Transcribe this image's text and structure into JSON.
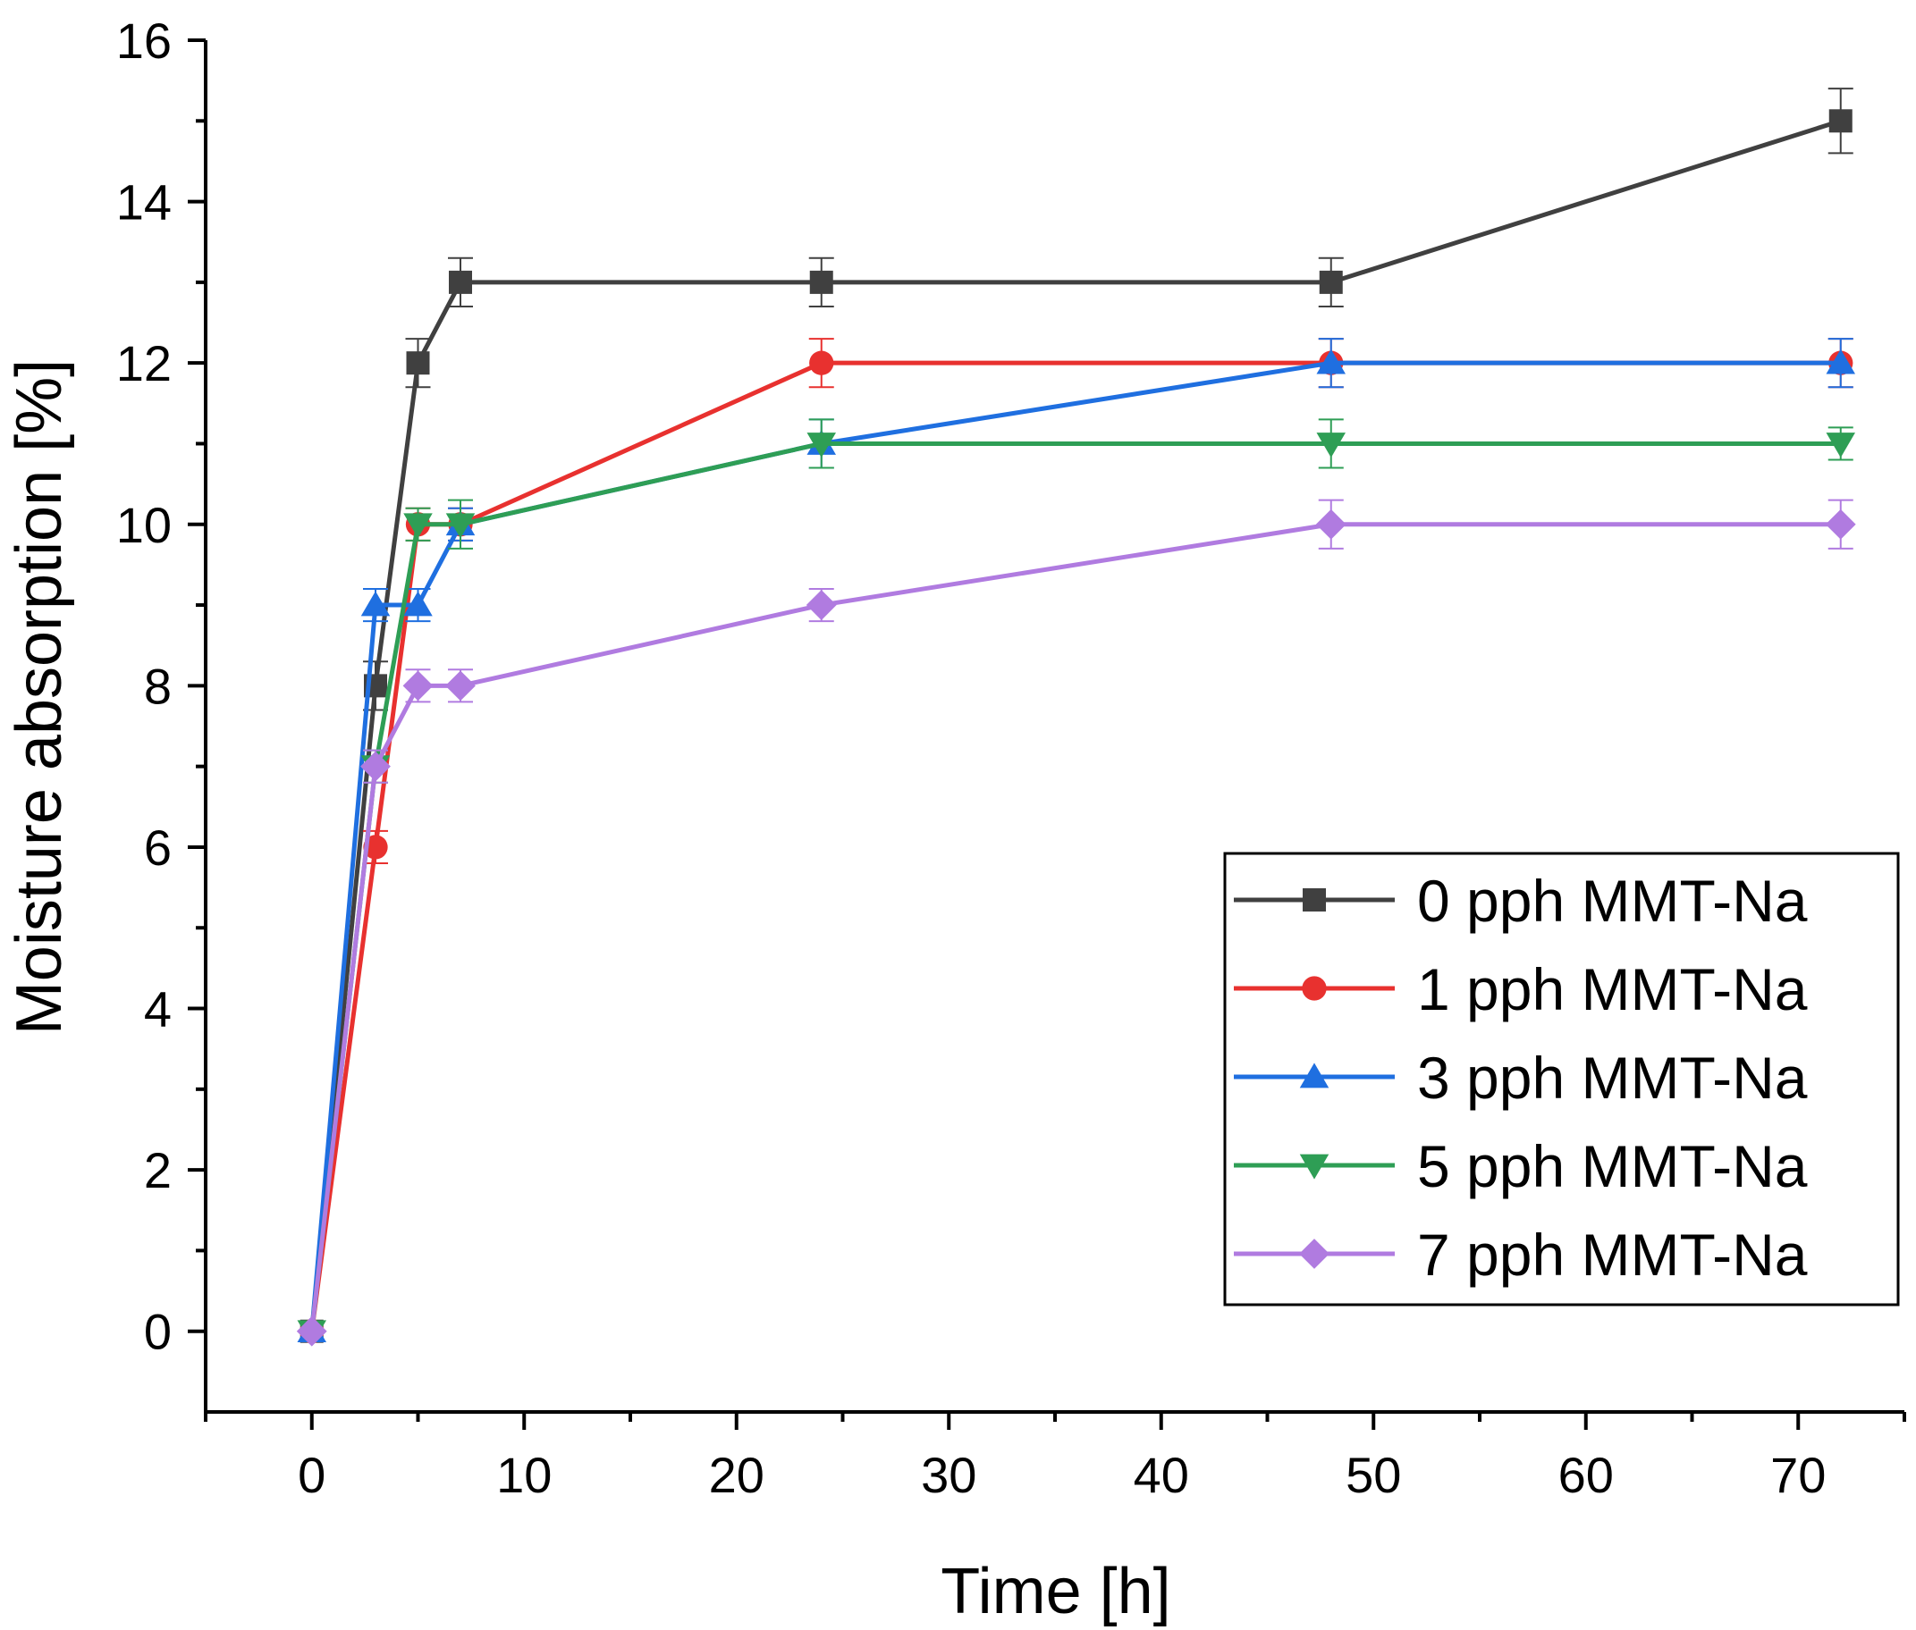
{
  "chart_data": {
    "type": "line",
    "xlabel": "Time [h]",
    "ylabel": "Moisture absorption [%]",
    "xlim": [
      -5,
      75
    ],
    "ylim": [
      -1,
      16
    ],
    "x_ticks": [
      0,
      10,
      20,
      30,
      40,
      50,
      60,
      70
    ],
    "y_ticks": [
      0,
      2,
      4,
      6,
      8,
      10,
      12,
      14,
      16
    ],
    "legend_position": "bottom-right",
    "series": [
      {
        "name": "0 pph MMT-Na",
        "color": "#404040",
        "marker": "square",
        "x": [
          0,
          3,
          5,
          7,
          24,
          48,
          72
        ],
        "y": [
          0,
          8,
          12,
          13,
          13,
          13,
          15
        ],
        "err": [
          0,
          0.3,
          0.3,
          0.3,
          0.3,
          0.3,
          0.4
        ]
      },
      {
        "name": "1 pph MMT-Na",
        "color": "#e8312f",
        "marker": "circle",
        "x": [
          0,
          3,
          5,
          7,
          24,
          48,
          72
        ],
        "y": [
          0,
          6,
          10,
          10,
          12,
          12,
          12
        ],
        "err": [
          0,
          0.2,
          0.2,
          0.2,
          0.3,
          0.3,
          0.3
        ]
      },
      {
        "name": "3 pph MMT-Na",
        "color": "#1f6fe0",
        "marker": "triangle-up",
        "x": [
          0,
          3,
          5,
          7,
          24,
          48,
          72
        ],
        "y": [
          0,
          9,
          9,
          10,
          11,
          12,
          12
        ],
        "err": [
          0,
          0.2,
          0.2,
          0.2,
          0.3,
          0.3,
          0.3
        ]
      },
      {
        "name": "5 pph MMT-Na",
        "color": "#2e9e55",
        "marker": "triangle-down",
        "x": [
          0,
          3,
          5,
          7,
          24,
          48,
          72
        ],
        "y": [
          0,
          7,
          10,
          10,
          11,
          11,
          11
        ],
        "err": [
          0,
          0.2,
          0.2,
          0.3,
          0.3,
          0.3,
          0.2
        ]
      },
      {
        "name": "7 pph MMT-Na",
        "color": "#b07be0",
        "marker": "diamond",
        "x": [
          0,
          3,
          5,
          7,
          24,
          48,
          72
        ],
        "y": [
          0,
          7,
          8,
          8,
          9,
          10,
          10
        ],
        "err": [
          0,
          0.2,
          0.2,
          0.2,
          0.2,
          0.3,
          0.3
        ]
      }
    ]
  }
}
